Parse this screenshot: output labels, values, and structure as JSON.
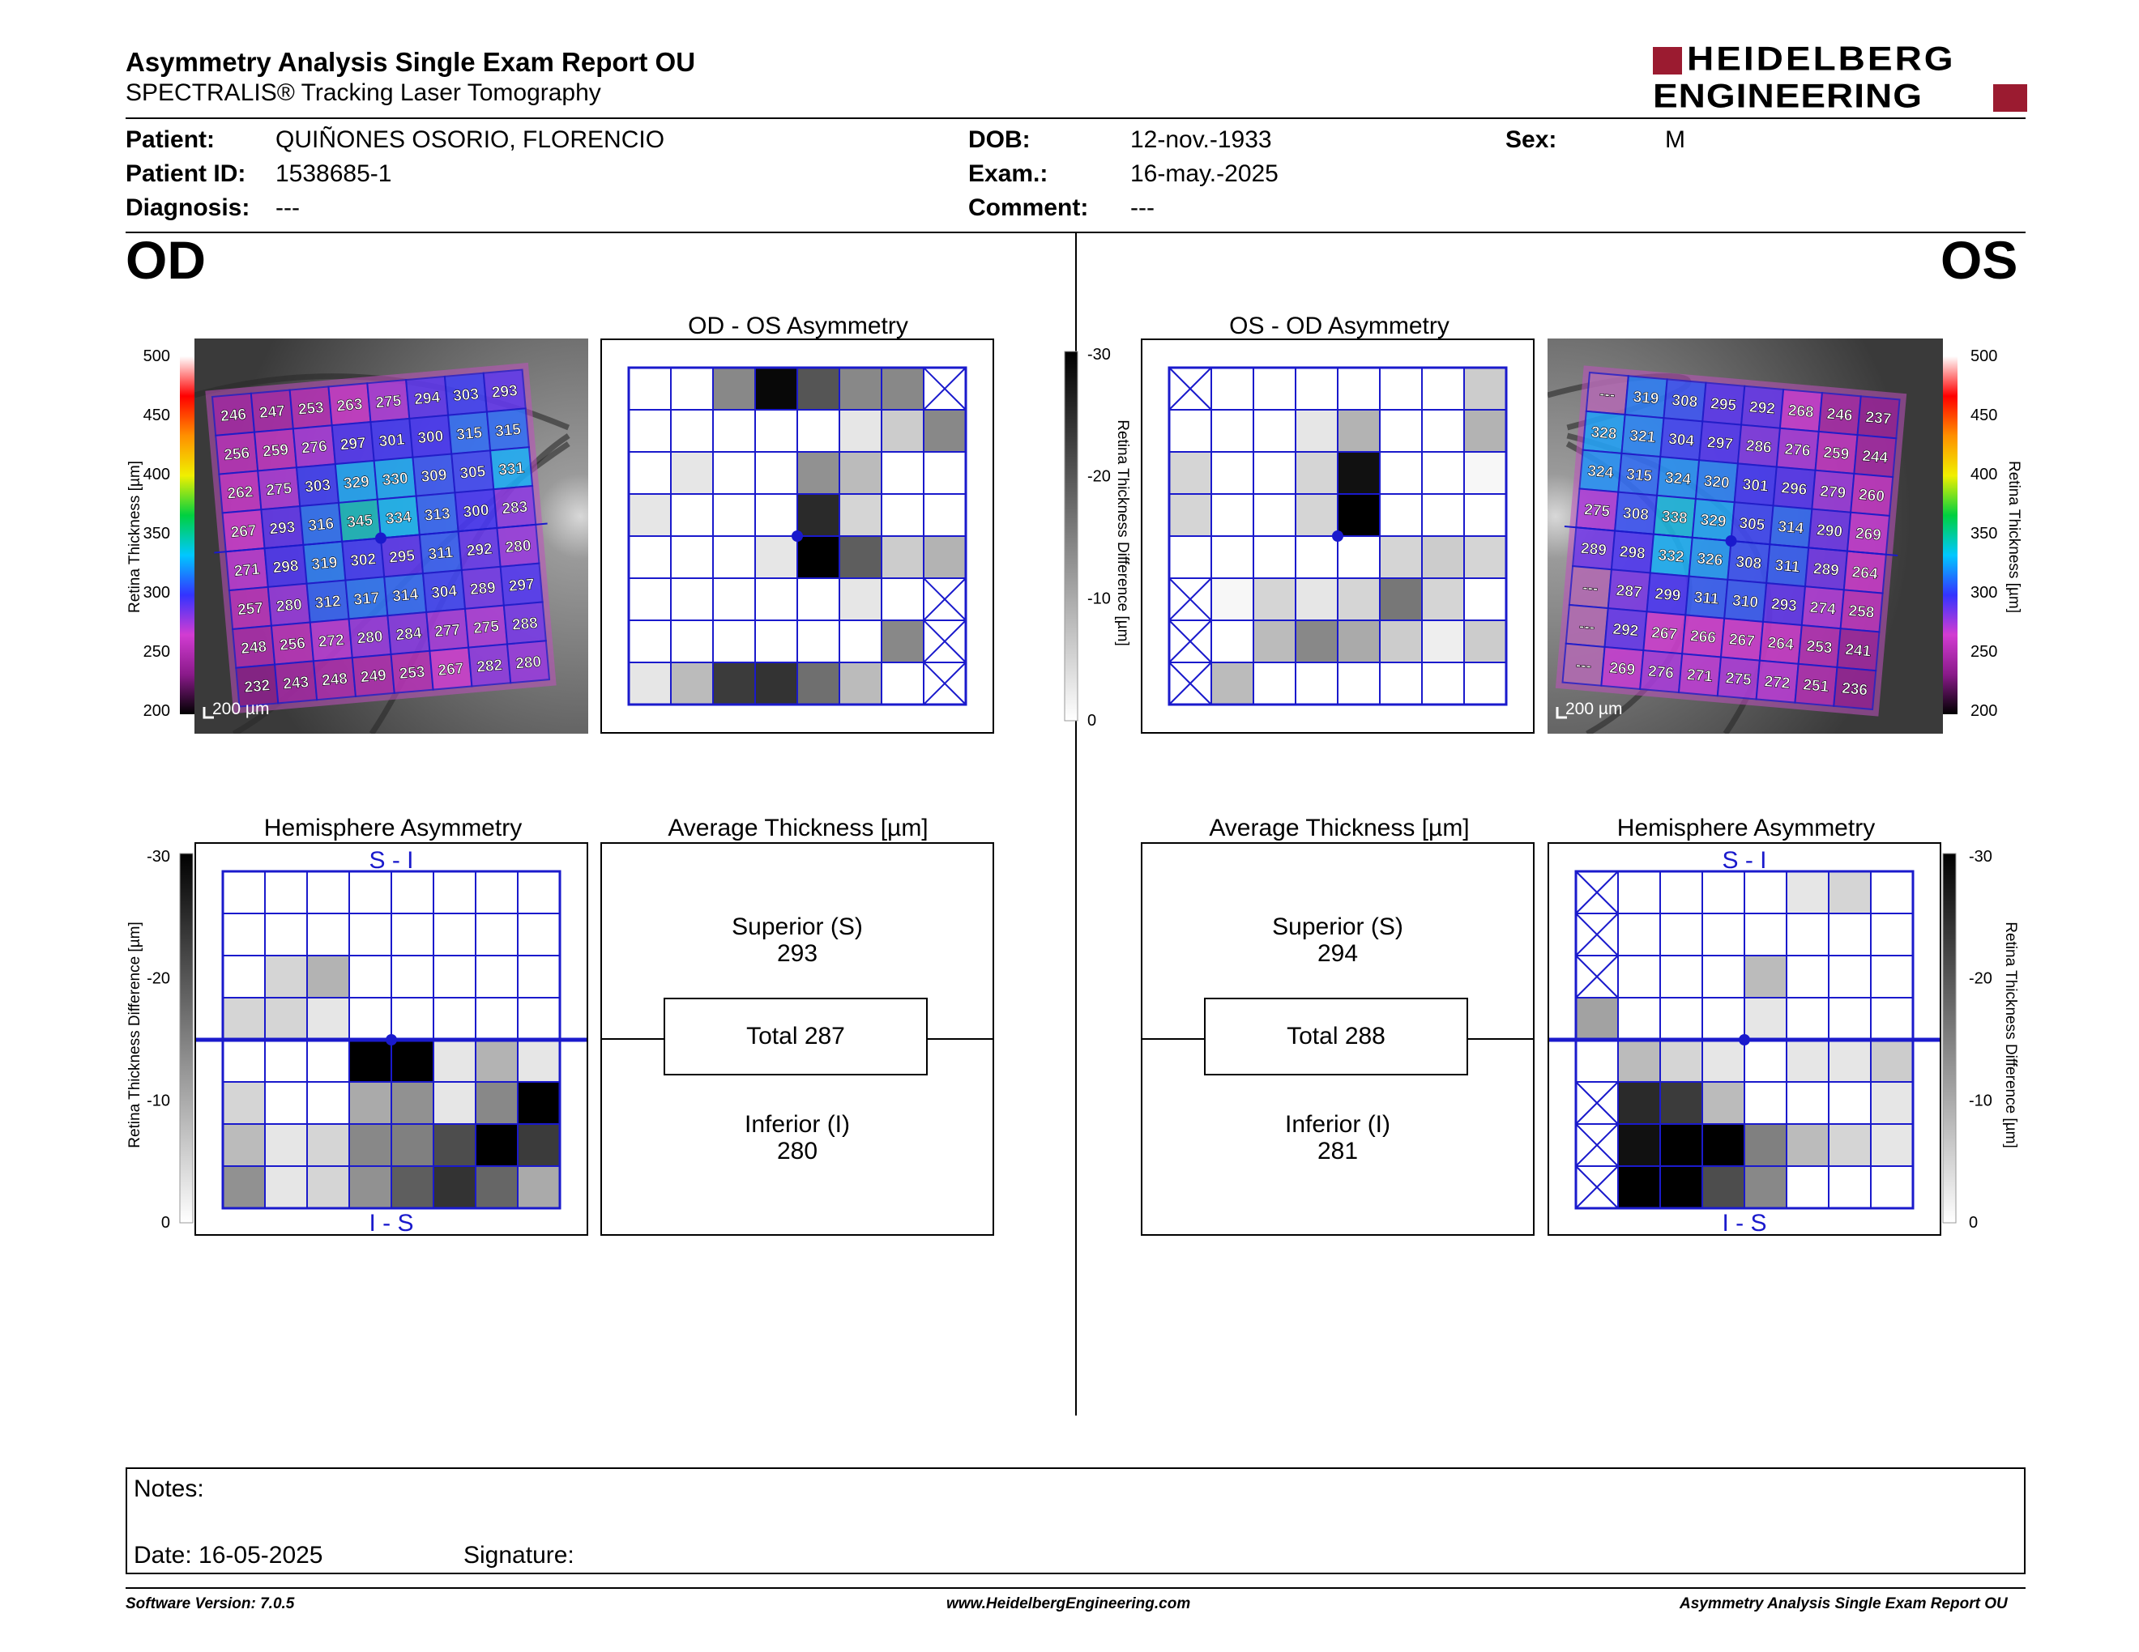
{
  "header": {
    "title": "Asymmetry Analysis Single Exam Report OU",
    "subtitle": "SPECTRALIS® Tracking Laser Tomography",
    "logo_line1": "HEIDELBERG",
    "logo_line2": "ENGINEERING",
    "logo_color": "#9b1b30"
  },
  "patient": {
    "patient_label": "Patient:",
    "patient_value": "QUIÑONES OSORIO, FLORENCIO",
    "id_label": "Patient ID:",
    "id_value": "1538685-1",
    "diagnosis_label": "Diagnosis:",
    "diagnosis_value": "---",
    "dob_label": "DOB:",
    "dob_value": "12-nov.-1933",
    "exam_label": "Exam.:",
    "exam_value": "16-may.-2025",
    "comment_label": "Comment:",
    "comment_value": "---",
    "sex_label": "Sex:",
    "sex_value": "M"
  },
  "od": {
    "eye_label": "OD",
    "asym_title": "OD - OS Asymmetry",
    "hemi_title": "Hemisphere Asymmetry",
    "avg_title": "Average Thickness [µm]",
    "hemi_top": "S - I",
    "hemi_bottom": "I - S",
    "superior_label": "Superior (S)",
    "superior_value": "293",
    "total_label": "Total 287",
    "inferior_label": "Inferior (I)",
    "inferior_value": "280",
    "scale_label": "200 µm",
    "thickness_grid": [
      [
        246,
        247,
        253,
        263,
        275,
        294,
        303,
        293
      ],
      [
        256,
        259,
        276,
        297,
        301,
        300,
        315,
        315
      ],
      [
        262,
        275,
        303,
        329,
        330,
        309,
        305,
        331
      ],
      [
        267,
        293,
        316,
        345,
        334,
        313,
        300,
        283
      ],
      [
        271,
        298,
        319,
        302,
        295,
        311,
        292,
        280
      ],
      [
        257,
        280,
        312,
        317,
        314,
        304,
        289,
        297
      ],
      [
        248,
        256,
        272,
        280,
        284,
        277,
        275,
        288
      ],
      [
        232,
        243,
        248,
        249,
        253,
        267,
        282,
        280
      ]
    ],
    "asym_grid": [
      [
        0,
        0,
        14,
        29,
        20,
        14,
        14,
        "x"
      ],
      [
        0,
        0,
        0,
        0,
        0,
        3,
        6,
        14
      ],
      [
        0,
        3,
        0,
        0,
        13,
        8,
        0,
        0
      ],
      [
        3,
        0,
        0,
        0,
        25,
        5,
        0,
        0
      ],
      [
        0,
        0,
        0,
        3,
        30,
        19,
        6,
        9
      ],
      [
        0,
        0,
        0,
        0,
        0,
        3,
        0,
        "x"
      ],
      [
        0,
        0,
        0,
        0,
        0,
        0,
        14,
        "x"
      ],
      [
        3,
        8,
        23,
        24,
        17,
        8,
        0,
        "x"
      ]
    ],
    "hemi_grid": [
      [
        0,
        0,
        0,
        0,
        0,
        0,
        0,
        0
      ],
      [
        0,
        0,
        0,
        0,
        0,
        0,
        0,
        0
      ],
      [
        0,
        5,
        9,
        0,
        0,
        0,
        0,
        0
      ],
      [
        5,
        5,
        3,
        0,
        0,
        0,
        0,
        0
      ],
      [
        0,
        0,
        0,
        30,
        30,
        3,
        9,
        3
      ],
      [
        5,
        0,
        0,
        10,
        13,
        3,
        14,
        30
      ],
      [
        8,
        3,
        5,
        14,
        15,
        21,
        30,
        23
      ],
      [
        13,
        3,
        5,
        13,
        19,
        24,
        18,
        10
      ]
    ]
  },
  "os": {
    "eye_label": "OS",
    "asym_title": "OS - OD Asymmetry",
    "hemi_title": "Hemisphere Asymmetry",
    "avg_title": "Average Thickness [µm]",
    "hemi_top": "S - I",
    "hemi_bottom": "I - S",
    "superior_label": "Superior (S)",
    "superior_value": "294",
    "total_label": "Total 288",
    "inferior_label": "Inferior (I)",
    "inferior_value": "281",
    "scale_label": "200 µm",
    "thickness_grid": [
      [
        "---",
        319,
        308,
        295,
        292,
        268,
        246,
        237
      ],
      [
        328,
        321,
        304,
        297,
        286,
        276,
        259,
        244
      ],
      [
        324,
        315,
        324,
        320,
        301,
        296,
        279,
        260
      ],
      [
        275,
        308,
        338,
        329,
        305,
        314,
        290,
        269
      ],
      [
        289,
        298,
        332,
        326,
        308,
        311,
        289,
        264
      ],
      [
        "---",
        287,
        299,
        311,
        310,
        293,
        274,
        258
      ],
      [
        "---",
        292,
        267,
        266,
        267,
        264,
        253,
        241
      ],
      [
        "---",
        269,
        276,
        271,
        275,
        272,
        251,
        236
      ]
    ],
    "asym_grid": [
      [
        "x",
        0,
        0,
        0,
        0,
        0,
        0,
        6
      ],
      [
        0,
        0,
        0,
        3,
        9,
        0,
        0,
        9
      ],
      [
        5,
        0,
        0,
        5,
        28,
        0,
        0,
        1
      ],
      [
        5,
        0,
        0,
        5,
        30,
        0,
        0,
        0
      ],
      [
        0,
        0,
        0,
        0,
        0,
        5,
        6,
        5
      ],
      [
        "x",
        1,
        5,
        3,
        5,
        16,
        5,
        0
      ],
      [
        "x",
        0,
        8,
        14,
        10,
        6,
        2,
        6
      ],
      [
        "x",
        8,
        0,
        0,
        0,
        0,
        0,
        0
      ]
    ],
    "hemi_grid": [
      [
        "x",
        0,
        0,
        0,
        0,
        3,
        5,
        0
      ],
      [
        "x",
        0,
        0,
        0,
        0,
        0,
        0,
        0
      ],
      [
        "x",
        0,
        0,
        0,
        8,
        0,
        0,
        0
      ],
      [
        11,
        0,
        0,
        0,
        3,
        0,
        0,
        0
      ],
      [
        0,
        8,
        5,
        3,
        0,
        3,
        3,
        6
      ],
      [
        "x",
        25,
        23,
        8,
        0,
        0,
        0,
        3
      ],
      [
        "x",
        28,
        30,
        30,
        15,
        8,
        5,
        3
      ],
      [
        "x",
        30,
        30,
        21,
        14,
        0,
        0,
        0
      ]
    ]
  },
  "scales": {
    "thickness_title": "Retina Thickness [µm]",
    "thickness_ticks": [
      "500",
      "450",
      "400",
      "350",
      "300",
      "250",
      "200"
    ],
    "diff_title": "Retina Thickness Difference [µm]",
    "diff_ticks": [
      "-30",
      "-20",
      "-10",
      "0"
    ]
  },
  "colors": {
    "grid_blue": "#1a1acc",
    "thickness_stops": [
      "#000000",
      "#8a1a8a",
      "#d23cd2",
      "#3333ff",
      "#00c8ff",
      "#00d040",
      "#f0f000",
      "#ff9000",
      "#ff0000",
      "#ffffff"
    ]
  },
  "notes": {
    "notes_label": "Notes:",
    "date_label": "Date: 16-05-2025",
    "signature_label": "Signature:"
  },
  "footer": {
    "left": "Software Version: 7.0.5",
    "center": "www.HeidelbergEngineering.com",
    "right": "Asymmetry Analysis Single Exam Report OU"
  }
}
